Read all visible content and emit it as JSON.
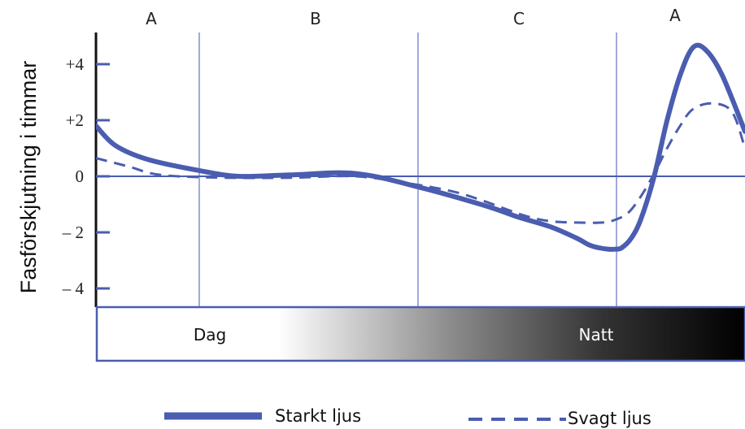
{
  "chart_data": {
    "type": "line",
    "ylabel": "Fasförskjutning i timmar",
    "xlabel": "",
    "ylim": [
      -4.6,
      5.2
    ],
    "y_ticks": [
      {
        "value": 4,
        "label": "+4"
      },
      {
        "value": 2,
        "label": "+2"
      },
      {
        "value": 0,
        "label": "0"
      },
      {
        "value": -2,
        "label": "– 2"
      },
      {
        "value": -4,
        "label": "– 4"
      }
    ],
    "sections": [
      "A",
      "B",
      "C",
      "A"
    ],
    "bands": [
      "Dag",
      "Natt"
    ],
    "series": [
      {
        "name": "Starkt ljus",
        "style": "solid",
        "color": "#4a5db0",
        "x": [
          0,
          0.03,
          0.08,
          0.16,
          0.22,
          0.3,
          0.4,
          0.5,
          0.6,
          0.65,
          0.7,
          0.74,
          0.76,
          0.775,
          0.79,
          0.8,
          0.81,
          0.825,
          0.84,
          0.86,
          0.88,
          0.9,
          0.92,
          0.94,
          0.965,
          1.0
        ],
        "values": [
          1.8,
          1.1,
          0.6,
          0.2,
          0.0,
          0.05,
          0.1,
          -0.4,
          -1.05,
          -1.45,
          -1.8,
          -2.2,
          -2.45,
          -2.55,
          -2.6,
          -2.6,
          -2.55,
          -2.2,
          -1.5,
          0.0,
          2.0,
          3.6,
          4.6,
          4.5,
          3.6,
          1.6
        ]
      },
      {
        "name": "Svagt ljus",
        "style": "dashed",
        "color": "#4a5db0",
        "x": [
          0,
          0.05,
          0.1,
          0.2,
          0.3,
          0.4,
          0.48,
          0.52,
          0.56,
          0.6,
          0.66,
          0.7,
          0.74,
          0.78,
          0.8,
          0.82,
          0.84,
          0.86,
          0.88,
          0.9,
          0.92,
          0.95,
          0.98,
          1.0
        ],
        "values": [
          0.65,
          0.35,
          0.05,
          -0.05,
          -0.05,
          0.0,
          -0.25,
          -0.4,
          -0.6,
          -0.9,
          -1.4,
          -1.6,
          -1.65,
          -1.65,
          -1.55,
          -1.3,
          -0.7,
          0.1,
          1.0,
          1.8,
          2.4,
          2.6,
          2.3,
          1.0
        ]
      }
    ],
    "grid": false,
    "legend": "bottom"
  }
}
